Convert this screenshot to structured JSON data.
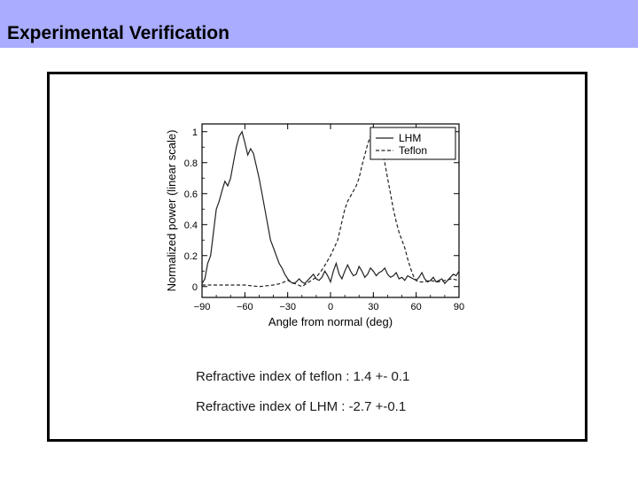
{
  "header": {
    "title": "Experimental Verification"
  },
  "captions": [
    "Refractive index of teflon : 1.4 +- 0.1",
    "Refractive index of LHM : -2.7 +-0.1"
  ],
  "chart_data": {
    "type": "line",
    "xlabel": "Angle from normal (deg)",
    "ylabel": "Normalized power (linear scale)",
    "xlim": [
      -90,
      90
    ],
    "ylim": [
      -0.07,
      1.05
    ],
    "xticks": [
      -90,
      -60,
      -30,
      0,
      30,
      60,
      90
    ],
    "xtick_labels": [
      "−90",
      "−60",
      "−30",
      "0",
      "30",
      "60",
      "90"
    ],
    "yticks": [
      0,
      0.2,
      0.4,
      0.6,
      0.8,
      1
    ],
    "ytick_labels": [
      "0",
      "0.2",
      "0.4",
      "0.6",
      "0.8",
      "1"
    ],
    "legend_position": "top-right",
    "grid": false,
    "series": [
      {
        "name": "LHM",
        "style": "solid",
        "x": [
          -90,
          -88,
          -86,
          -84,
          -82,
          -80,
          -78,
          -76,
          -74,
          -72,
          -70,
          -68,
          -66,
          -64,
          -62,
          -60,
          -58,
          -56,
          -54,
          -52,
          -50,
          -48,
          -46,
          -44,
          -42,
          -40,
          -38,
          -36,
          -34,
          -32,
          -30,
          -28,
          -26,
          -24,
          -22,
          -20,
          -18,
          -16,
          -14,
          -12,
          -10,
          -8,
          -6,
          -4,
          -2,
          0,
          2,
          4,
          6,
          8,
          10,
          12,
          14,
          16,
          18,
          20,
          22,
          24,
          26,
          28,
          30,
          32,
          34,
          36,
          38,
          40,
          42,
          44,
          46,
          48,
          50,
          52,
          54,
          56,
          58,
          60,
          62,
          64,
          66,
          68,
          70,
          72,
          74,
          76,
          78,
          80,
          82,
          84,
          86,
          88,
          90
        ],
        "y": [
          0.02,
          0.05,
          0.15,
          0.2,
          0.35,
          0.5,
          0.55,
          0.62,
          0.68,
          0.65,
          0.7,
          0.8,
          0.9,
          0.97,
          1.0,
          0.93,
          0.85,
          0.89,
          0.86,
          0.78,
          0.7,
          0.6,
          0.5,
          0.4,
          0.3,
          0.25,
          0.2,
          0.15,
          0.12,
          0.08,
          0.05,
          0.03,
          0.02,
          0.03,
          0.05,
          0.03,
          0.02,
          0.04,
          0.06,
          0.08,
          0.05,
          0.04,
          0.06,
          0.1,
          0.07,
          0.03,
          0.1,
          0.15,
          0.08,
          0.05,
          0.1,
          0.14,
          0.1,
          0.07,
          0.08,
          0.13,
          0.1,
          0.06,
          0.08,
          0.12,
          0.1,
          0.07,
          0.09,
          0.1,
          0.12,
          0.08,
          0.06,
          0.07,
          0.09,
          0.05,
          0.06,
          0.04,
          0.07,
          0.06,
          0.05,
          0.04,
          0.06,
          0.09,
          0.05,
          0.03,
          0.04,
          0.06,
          0.03,
          0.04,
          0.05,
          0.02,
          0.04,
          0.06,
          0.08,
          0.07,
          0.1
        ]
      },
      {
        "name": "Teflon",
        "style": "dashed",
        "x": [
          -90,
          -80,
          -70,
          -60,
          -50,
          -40,
          -35,
          -30,
          -25,
          -20,
          -15,
          -10,
          -5,
          0,
          5,
          8,
          10,
          12,
          15,
          18,
          20,
          22,
          24,
          26,
          28,
          30,
          32,
          34,
          36,
          38,
          40,
          42,
          44,
          46,
          48,
          50,
          52,
          54,
          56,
          58,
          60,
          62,
          65,
          70,
          75,
          80,
          85,
          90
        ],
        "y": [
          0.01,
          0.01,
          0.01,
          0.01,
          0.0,
          0.01,
          0.02,
          0.04,
          0.02,
          0.0,
          0.03,
          0.06,
          0.12,
          0.2,
          0.3,
          0.42,
          0.5,
          0.55,
          0.6,
          0.65,
          0.7,
          0.78,
          0.85,
          0.92,
          0.97,
          1.0,
          0.99,
          0.95,
          0.88,
          0.8,
          0.7,
          0.6,
          0.5,
          0.42,
          0.35,
          0.3,
          0.25,
          0.18,
          0.12,
          0.07,
          0.04,
          0.03,
          0.03,
          0.04,
          0.03,
          0.04,
          0.05,
          0.04
        ]
      }
    ]
  }
}
